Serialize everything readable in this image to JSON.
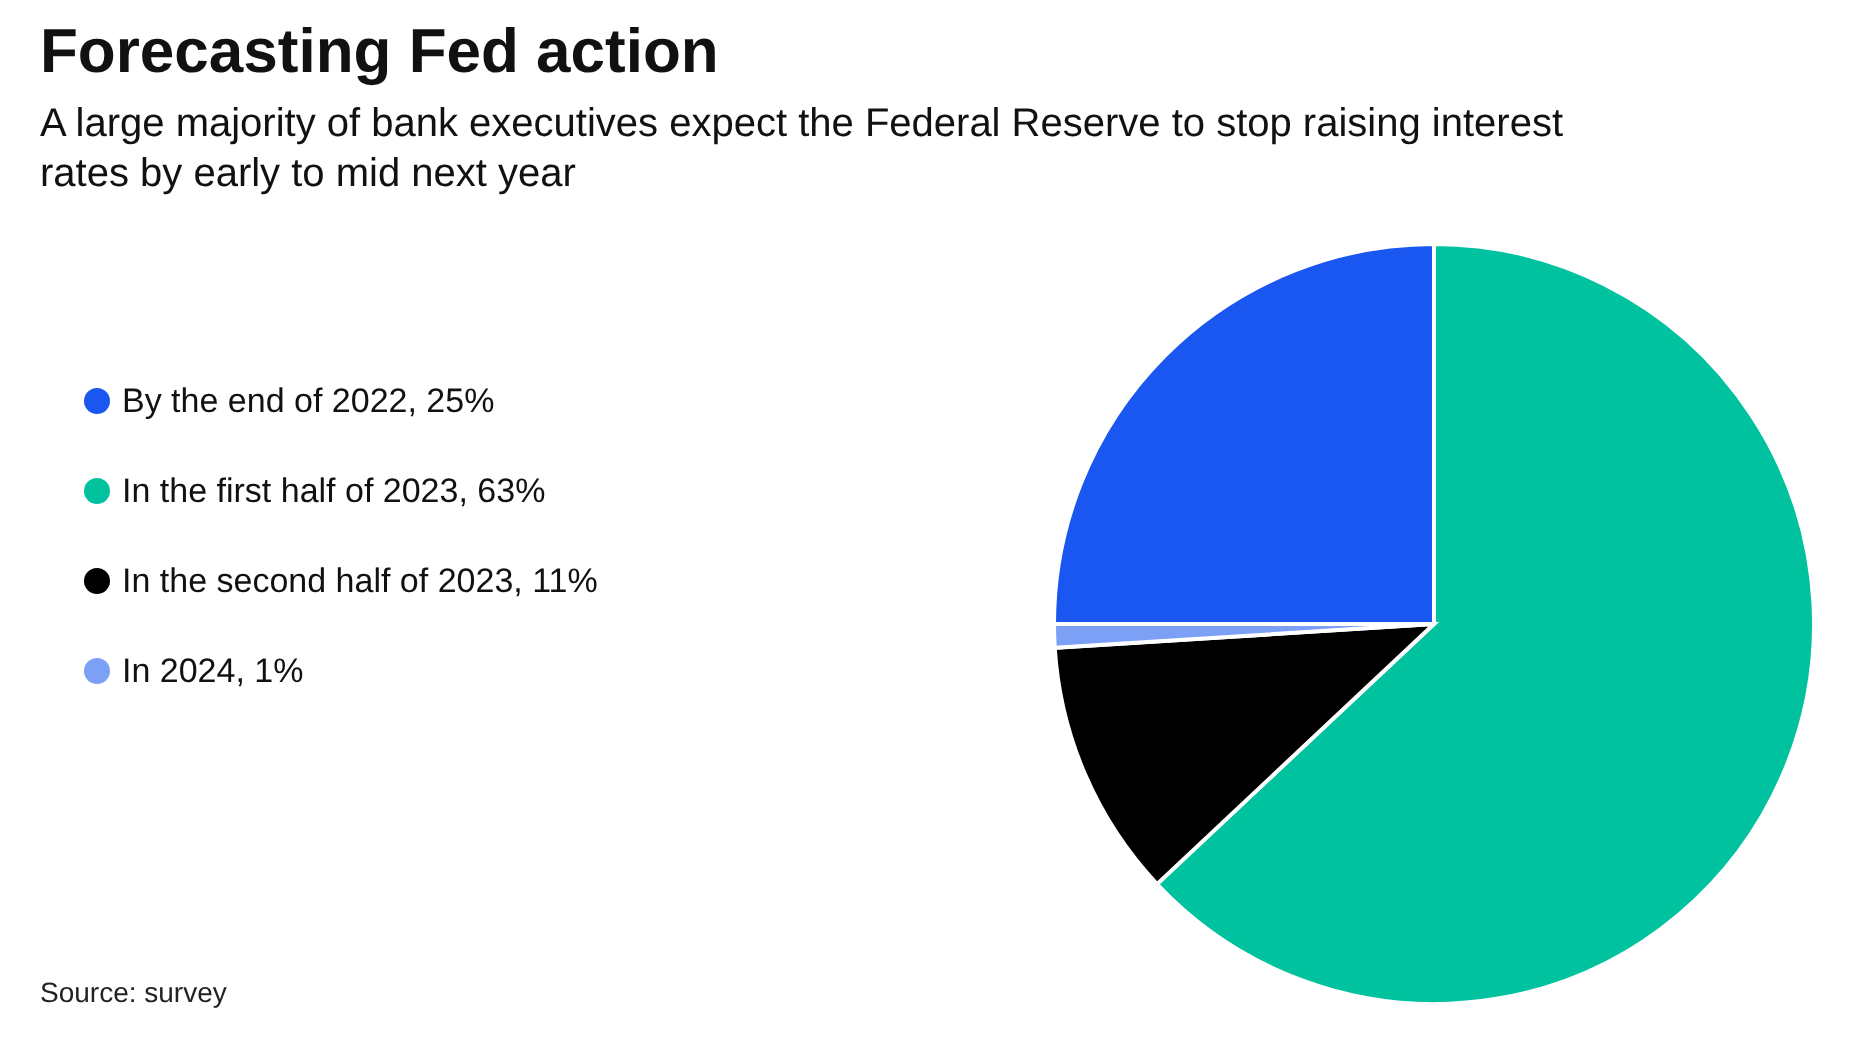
{
  "chart_data": {
    "type": "pie",
    "title": "Forecasting Fed action",
    "subtitle": "A large majority of bank executives expect the Federal Reserve to stop raising interest rates by early to mid next year",
    "categories": [
      "By the end of 2022, 25%",
      "In the first half of 2023, 63%",
      "In the second half of 2023, 11%",
      "In 2024, 1%"
    ],
    "values": [
      25,
      63,
      11,
      1
    ],
    "colors": [
      "#1a56f0",
      "#00c29e",
      "#000000",
      "#7ba0f5"
    ],
    "legend": "left",
    "annotations": [
      "Source: survey"
    ]
  }
}
